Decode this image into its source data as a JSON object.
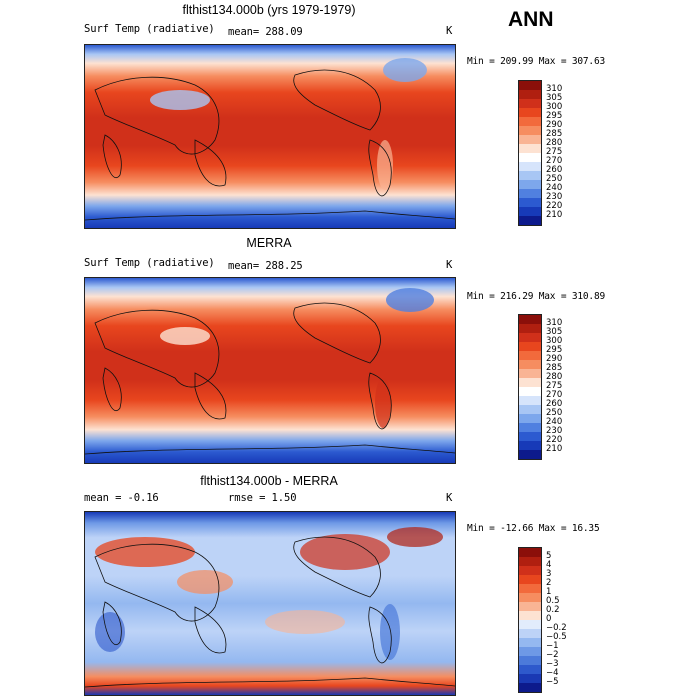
{
  "figure_title": "ANN",
  "panels": [
    {
      "title": "flthist134.000b (yrs 1979-1979)",
      "left_label": "Surf Temp (radiative)",
      "mean_text": "mean= 288.09",
      "units": "K",
      "minmax": "Min = 209.99 Max = 307.63"
    },
    {
      "title": "MERRA",
      "left_label": "Surf Temp (radiative)",
      "mean_text": "mean= 288.25",
      "units": "K",
      "minmax": "Min = 216.29 Max = 310.89"
    },
    {
      "title": "flthist134.000b - MERRA",
      "left_label": "mean =   -0.16",
      "mean_text": "rmse =   1.50",
      "units": "K",
      "minmax": "Min = -12.66 Max =  16.35"
    }
  ],
  "colorbars": {
    "absolute": {
      "labels": [
        "310",
        "305",
        "300",
        "295",
        "290",
        "285",
        "280",
        "275",
        "270",
        "260",
        "250",
        "240",
        "230",
        "220",
        "210"
      ],
      "colors": [
        "#8b0f0a",
        "#b01f10",
        "#d0301a",
        "#e8461e",
        "#f26a3c",
        "#f68d60",
        "#f9b494",
        "#fde2d2",
        "#ffffff",
        "#d6e4fb",
        "#a8c6f4",
        "#7da7ec",
        "#5080e0",
        "#2c5ad0",
        "#173ab8",
        "#0d1a8c"
      ]
    },
    "difference": {
      "labels": [
        "5",
        "4",
        "3",
        "2",
        "1",
        "0.5",
        "0.2",
        "0",
        "−0.2",
        "−0.5",
        "−1",
        "−2",
        "−3",
        "−4",
        "−5"
      ],
      "colors": [
        "#8b0f0a",
        "#b01f10",
        "#d0301a",
        "#e8461e",
        "#f26a3c",
        "#f68d60",
        "#f9b494",
        "#fde2d2",
        "#e2ecfc",
        "#bdd3f7",
        "#94b8f0",
        "#6e99e6",
        "#4c7ada",
        "#2e59cc",
        "#1a39b4",
        "#0d1a8c"
      ]
    }
  }
}
